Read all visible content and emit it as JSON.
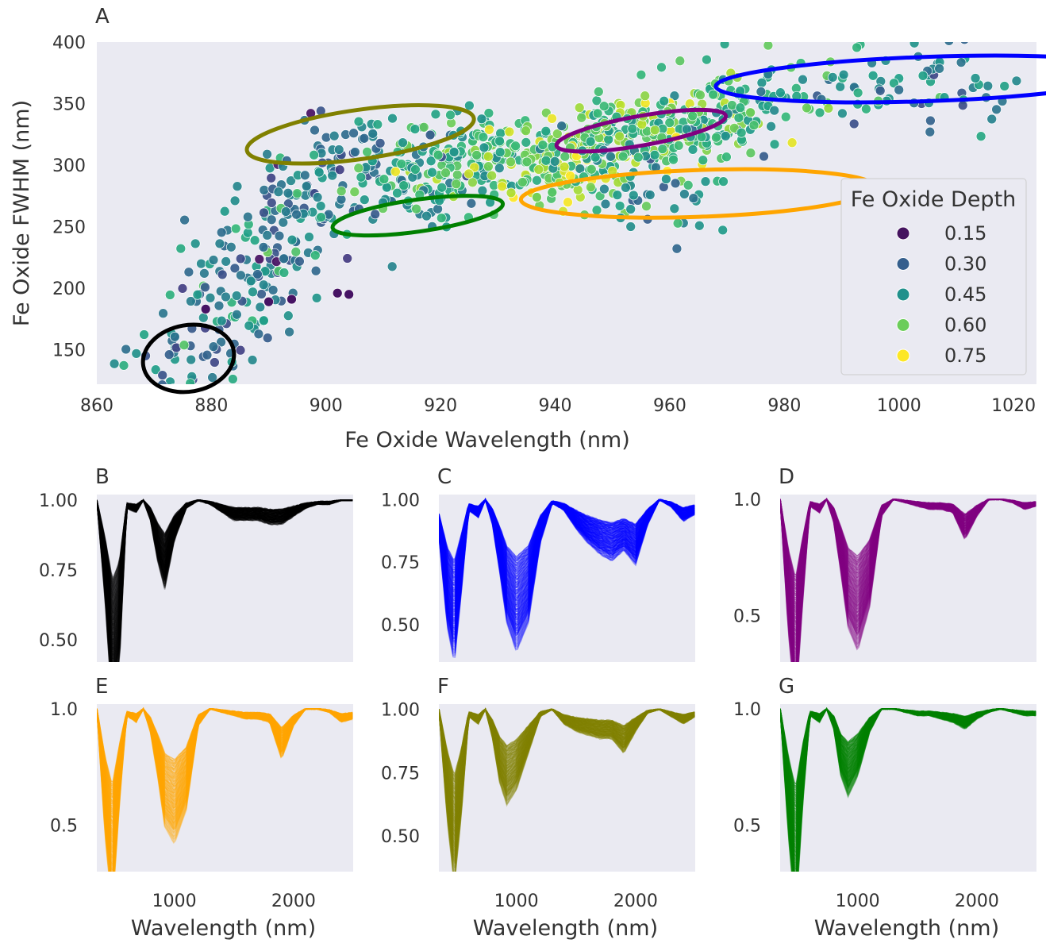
{
  "chart_data": [
    {
      "panel": "A",
      "type": "scatter",
      "xlabel": "Fe Oxide Wavelength (nm)",
      "ylabel": "Fe Oxide FWHM (nm)",
      "xlim": [
        860,
        1024
      ],
      "ylim": [
        122,
        400
      ],
      "x_ticks": [
        860,
        880,
        900,
        920,
        940,
        960,
        980,
        1000,
        1020
      ],
      "y_ticks": [
        150,
        200,
        250,
        300,
        350,
        400
      ],
      "grid": false,
      "legend": {
        "title": "Fe Oxide Depth",
        "location": "lower-right",
        "entries": [
          {
            "label": "0.15",
            "color": "#45135f"
          },
          {
            "label": "0.30",
            "color": "#355f8d"
          },
          {
            "label": "0.45",
            "color": "#21918c"
          },
          {
            "label": "0.60",
            "color": "#6ccd5a"
          },
          {
            "label": "0.75",
            "color": "#fde725"
          }
        ]
      },
      "point_clusters": [
        {
          "x": 875,
          "y": 140,
          "depth": 0.4,
          "n": 40
        },
        {
          "x": 882,
          "y": 175,
          "depth": 0.42,
          "n": 40
        },
        {
          "x": 888,
          "y": 215,
          "depth": 0.4,
          "n": 60
        },
        {
          "x": 895,
          "y": 260,
          "depth": 0.4,
          "n": 80
        },
        {
          "x": 902,
          "y": 310,
          "depth": 0.38,
          "n": 60
        },
        {
          "x": 915,
          "y": 290,
          "depth": 0.5,
          "n": 90
        },
        {
          "x": 925,
          "y": 310,
          "depth": 0.55,
          "n": 120
        },
        {
          "x": 940,
          "y": 300,
          "depth": 0.62,
          "n": 130
        },
        {
          "x": 950,
          "y": 320,
          "depth": 0.62,
          "n": 130
        },
        {
          "x": 962,
          "y": 330,
          "depth": 0.58,
          "n": 110
        },
        {
          "x": 972,
          "y": 345,
          "depth": 0.55,
          "n": 80
        },
        {
          "x": 958,
          "y": 280,
          "depth": 0.45,
          "n": 40
        },
        {
          "x": 990,
          "y": 360,
          "depth": 0.45,
          "n": 40
        },
        {
          "x": 1008,
          "y": 370,
          "depth": 0.38,
          "n": 40
        }
      ],
      "outliers": [
        {
          "x": 879,
          "y": 183,
          "depth": 0.15
        },
        {
          "x": 890,
          "y": 189,
          "depth": 0.15
        },
        {
          "x": 894,
          "y": 191,
          "depth": 0.15
        },
        {
          "x": 902,
          "y": 196,
          "depth": 0.15
        },
        {
          "x": 904,
          "y": 195,
          "depth": 0.15
        }
      ],
      "ellipses": [
        {
          "name": "black",
          "color": "#000000",
          "cx": 876,
          "cy": 143,
          "rx": 8,
          "ry": 27,
          "angle": -10
        },
        {
          "name": "olive",
          "color": "#808000",
          "cx": 906,
          "cy": 325,
          "rx": 20,
          "ry": 20,
          "angle": -8
        },
        {
          "name": "green",
          "color": "#008000",
          "cx": 916,
          "cy": 259,
          "rx": 15,
          "ry": 13,
          "angle": -8
        },
        {
          "name": "purple",
          "color": "#800080",
          "cx": 955,
          "cy": 328,
          "rx": 15,
          "ry": 12,
          "angle": -10
        },
        {
          "name": "orange",
          "color": "#ffa500",
          "cx": 965,
          "cy": 277,
          "rx": 31,
          "ry": 19,
          "angle": -2
        },
        {
          "name": "blue",
          "color": "#0000ff",
          "cx": 1005,
          "cy": 370,
          "rx": 37,
          "ry": 18,
          "angle": -2
        }
      ]
    },
    {
      "panel": "B",
      "type": "line",
      "color": "#000000",
      "xlabel": "Wavelength (nm)",
      "ylabel": "",
      "xlim": [
        350,
        2500
      ],
      "ylim": [
        0.42,
        1.02
      ],
      "x_ticks": [
        1000,
        2000
      ],
      "y_ticks": [
        "1.00",
        "0.75",
        "0.50"
      ],
      "samples": {
        "x": [
          350,
          420,
          480,
          540,
          600,
          680,
          740,
          800,
          860,
          920,
          1000,
          1100,
          1200,
          1300,
          1400,
          1500,
          1600,
          1700,
          1800,
          1900,
          2000,
          2100,
          2200,
          2300,
          2400,
          2500
        ],
        "y": [
          1.0,
          0.75,
          0.48,
          0.6,
          0.98,
          0.97,
          1.0,
          0.95,
          0.85,
          0.78,
          0.9,
          0.98,
          1.0,
          0.99,
          0.97,
          0.95,
          0.95,
          0.95,
          0.94,
          0.94,
          0.96,
          0.98,
          0.99,
          0.99,
          1.0,
          1.0
        ]
      }
    },
    {
      "panel": "C",
      "type": "line",
      "color": "#0000ff",
      "xlabel": "Wavelength (nm)",
      "ylabel": "",
      "xlim": [
        350,
        2500
      ],
      "ylim": [
        0.35,
        1.02
      ],
      "x_ticks": [
        1000,
        2000
      ],
      "y_ticks": [
        "1.00",
        "0.75",
        "0.50"
      ],
      "samples": {
        "x": [
          350,
          420,
          480,
          540,
          600,
          680,
          740,
          800,
          860,
          920,
          1000,
          1100,
          1200,
          1300,
          1400,
          1500,
          1600,
          1700,
          1800,
          1900,
          2000,
          2100,
          2200,
          2300,
          2400,
          2500
        ],
        "y": [
          0.9,
          0.65,
          0.55,
          0.75,
          0.97,
          0.95,
          1.0,
          0.93,
          0.8,
          0.66,
          0.58,
          0.66,
          0.88,
          0.99,
          0.97,
          0.92,
          0.88,
          0.85,
          0.83,
          0.86,
          0.82,
          0.93,
          1.0,
          0.98,
          0.94,
          0.96
        ]
      }
    },
    {
      "panel": "D",
      "type": "line",
      "color": "#800080",
      "xlabel": "Wavelength (nm)",
      "ylabel": "",
      "xlim": [
        350,
        2500
      ],
      "ylim": [
        0.3,
        1.02
      ],
      "x_ticks": [
        1000,
        2000
      ],
      "y_ticks": [
        "1.0",
        "0.5"
      ],
      "samples": {
        "x": [
          350,
          420,
          480,
          540,
          600,
          680,
          740,
          800,
          860,
          920,
          1000,
          1100,
          1200,
          1300,
          1400,
          1500,
          1600,
          1700,
          1800,
          1900,
          2000,
          2100,
          2200,
          2300,
          2400,
          2500
        ],
        "y": [
          1.0,
          0.6,
          0.38,
          0.7,
          0.98,
          0.96,
          1.0,
          0.93,
          0.78,
          0.62,
          0.55,
          0.68,
          0.95,
          1.0,
          0.99,
          0.98,
          0.97,
          0.97,
          0.96,
          0.88,
          0.95,
          1.0,
          1.0,
          0.99,
          0.97,
          0.98
        ]
      }
    },
    {
      "panel": "E",
      "type": "line",
      "color": "#ffa500",
      "xlabel": "Wavelength (nm)",
      "ylabel": "",
      "xlim": [
        350,
        2500
      ],
      "ylim": [
        0.3,
        1.02
      ],
      "x_ticks": [
        1000,
        2000
      ],
      "y_ticks": [
        "1.0",
        "0.5"
      ],
      "samples": {
        "x": [
          350,
          420,
          480,
          540,
          600,
          680,
          740,
          800,
          860,
          920,
          1000,
          1100,
          1200,
          1300,
          1400,
          1500,
          1600,
          1700,
          1800,
          1900,
          2000,
          2100,
          2200,
          2300,
          2400,
          2500
        ],
        "y": [
          1.0,
          0.62,
          0.4,
          0.72,
          0.98,
          0.96,
          1.0,
          0.93,
          0.8,
          0.65,
          0.6,
          0.7,
          0.95,
          1.0,
          0.99,
          0.98,
          0.97,
          0.97,
          0.96,
          0.85,
          0.95,
          1.0,
          1.0,
          0.99,
          0.96,
          0.97
        ]
      }
    },
    {
      "panel": "F",
      "type": "line",
      "color": "#808000",
      "xlabel": "Wavelength (nm)",
      "ylabel": "",
      "xlim": [
        350,
        2500
      ],
      "ylim": [
        0.36,
        1.02
      ],
      "x_ticks": [
        1000,
        2000
      ],
      "y_ticks": [
        "1.00",
        "0.75",
        "0.50"
      ],
      "samples": {
        "x": [
          350,
          420,
          480,
          540,
          600,
          680,
          740,
          800,
          860,
          920,
          1000,
          1100,
          1200,
          1300,
          1400,
          1500,
          1600,
          1700,
          1800,
          1900,
          2000,
          2100,
          2200,
          2300,
          2400,
          2500
        ],
        "y": [
          1.0,
          0.7,
          0.52,
          0.72,
          0.98,
          0.96,
          1.0,
          0.92,
          0.8,
          0.74,
          0.78,
          0.88,
          0.98,
          1.0,
          0.96,
          0.94,
          0.93,
          0.92,
          0.92,
          0.88,
          0.94,
          0.99,
          1.0,
          0.98,
          0.96,
          0.98
        ]
      }
    },
    {
      "panel": "G",
      "type": "line",
      "color": "#008000",
      "xlabel": "Wavelength (nm)",
      "ylabel": "",
      "xlim": [
        350,
        2500
      ],
      "ylim": [
        0.3,
        1.02
      ],
      "x_ticks": [
        1000,
        2000
      ],
      "y_ticks": [
        "1.0",
        "0.5"
      ],
      "samples": {
        "x": [
          350,
          420,
          480,
          540,
          600,
          680,
          740,
          800,
          860,
          920,
          1000,
          1100,
          1200,
          1300,
          1400,
          1500,
          1600,
          1700,
          1800,
          1900,
          2000,
          2100,
          2200,
          2300,
          2400,
          2500
        ],
        "y": [
          1.0,
          0.62,
          0.38,
          0.72,
          0.98,
          0.96,
          1.0,
          0.94,
          0.8,
          0.74,
          0.8,
          0.93,
          1.0,
          1.0,
          0.99,
          0.98,
          0.98,
          0.97,
          0.96,
          0.94,
          0.97,
          0.99,
          1.0,
          0.99,
          0.98,
          0.98
        ]
      }
    }
  ]
}
